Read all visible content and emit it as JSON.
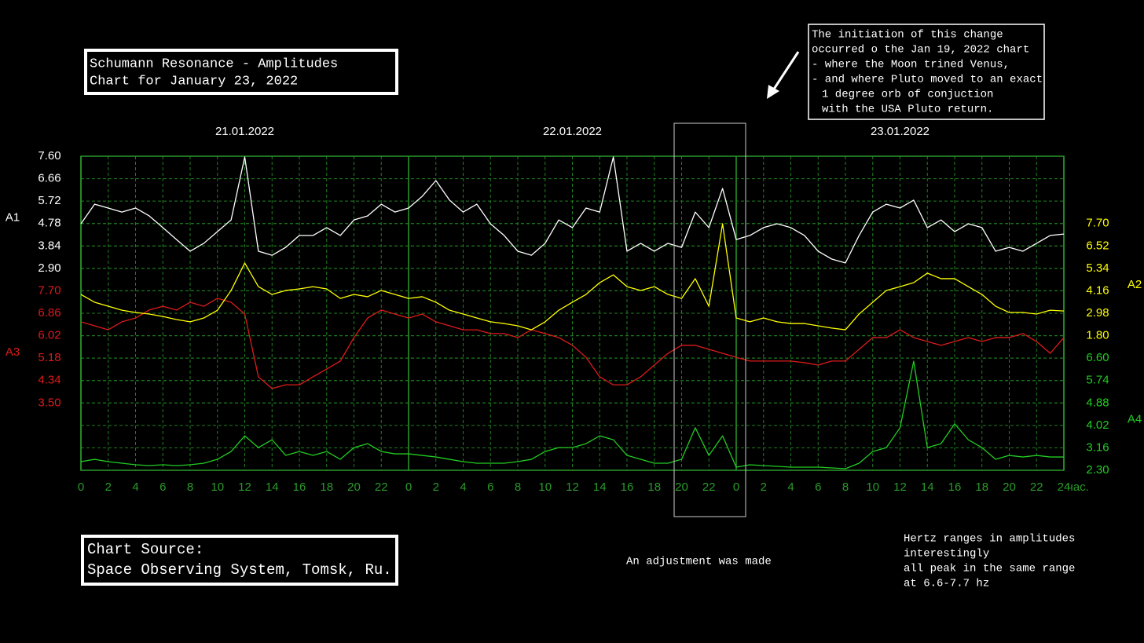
{
  "chart_data": {
    "type": "line",
    "title": [
      "Schumann Resonance - Amplitudes",
      "Chart for January 23, 2022"
    ],
    "day_labels": [
      "21.01.2022",
      "22.01.2022",
      "23.01.2022"
    ],
    "x_unit": "час.",
    "xlim": [
      0,
      72
    ],
    "xticks": [
      0,
      2,
      4,
      6,
      8,
      10,
      12,
      14,
      16,
      18,
      20,
      22,
      {
        "value": 24,
        "label": "0"
      },
      {
        "value": 26,
        "label": "2"
      },
      {
        "value": 28,
        "label": "4"
      },
      {
        "value": 30,
        "label": "6"
      },
      {
        "value": 32,
        "label": "8"
      },
      {
        "value": 34,
        "label": "10"
      },
      {
        "value": 36,
        "label": "12"
      },
      {
        "value": 38,
        "label": "14"
      },
      {
        "value": 40,
        "label": "16"
      },
      {
        "value": 42,
        "label": "18"
      },
      {
        "value": 44,
        "label": "20"
      },
      {
        "value": 46,
        "label": "22"
      },
      {
        "value": 48,
        "label": "0"
      },
      {
        "value": 50,
        "label": "2"
      },
      {
        "value": 52,
        "label": "4"
      },
      {
        "value": 54,
        "label": "6"
      },
      {
        "value": 56,
        "label": "8"
      },
      {
        "value": 58,
        "label": "10"
      },
      {
        "value": 60,
        "label": "12"
      },
      {
        "value": 62,
        "label": "14"
      },
      {
        "value": 64,
        "label": "16"
      },
      {
        "value": 66,
        "label": "18"
      },
      {
        "value": 68,
        "label": "20"
      },
      {
        "value": 70,
        "label": "22"
      },
      {
        "value": 72,
        "label": "24"
      }
    ],
    "x": [
      0,
      1,
      2,
      3,
      4,
      5,
      6,
      7,
      8,
      9,
      10,
      11,
      12,
      13,
      14,
      15,
      16,
      17,
      18,
      19,
      20,
      21,
      22,
      23,
      24,
      25,
      26,
      27,
      28,
      29,
      30,
      31,
      32,
      33,
      34,
      35,
      36,
      37,
      38,
      39,
      40,
      41,
      42,
      43,
      44,
      45,
      46,
      47,
      48,
      49,
      50,
      51,
      52,
      53,
      54,
      55,
      56,
      57,
      58,
      59,
      60,
      61,
      62,
      63,
      64,
      65,
      66,
      67,
      68,
      69,
      70,
      71,
      72
    ],
    "grid": true,
    "series": [
      {
        "name": "A1",
        "color": "#ffffff",
        "side": "left",
        "ylim": [
          -5.56,
          7.6
        ],
        "yticks": [
          {
            "value": 7.6,
            "label": "7.60"
          },
          6.66,
          5.72,
          4.78,
          3.84,
          {
            "value": 2.9,
            "label": "2.90"
          }
        ],
        "values": [
          4.77,
          5.59,
          5.43,
          5.26,
          5.43,
          5.1,
          4.61,
          4.11,
          3.62,
          3.95,
          4.44,
          4.93,
          7.57,
          3.62,
          3.45,
          3.78,
          4.28,
          4.28,
          4.61,
          4.28,
          4.93,
          5.1,
          5.59,
          5.26,
          5.43,
          5.92,
          6.58,
          5.76,
          5.26,
          5.59,
          4.77,
          4.28,
          3.62,
          3.45,
          3.95,
          4.93,
          4.61,
          5.43,
          5.26,
          7.57,
          3.62,
          3.95,
          3.62,
          3.95,
          3.78,
          5.26,
          4.61,
          6.25,
          4.11,
          4.28,
          4.61,
          4.77,
          4.61,
          4.28,
          3.62,
          3.29,
          3.13,
          4.28,
          5.26,
          5.59,
          5.43,
          5.76,
          4.61,
          4.93,
          4.44,
          4.77,
          4.61,
          3.62,
          3.78,
          3.62,
          3.95,
          4.28,
          4.34
        ]
      },
      {
        "name": "A2",
        "color": "#ffff00",
        "side": "right",
        "ylim": [
          -5.28,
          11.24
        ],
        "yticks": [
          {
            "value": 7.7,
            "label": "7.70"
          },
          6.52,
          5.34,
          4.16,
          2.98,
          {
            "value": 1.8,
            "label": "1.80"
          }
        ],
        "values": [
          3.97,
          3.56,
          3.35,
          3.14,
          3.02,
          2.94,
          2.81,
          2.65,
          2.53,
          2.73,
          3.14,
          4.18,
          5.62,
          4.38,
          3.97,
          4.18,
          4.26,
          4.38,
          4.26,
          3.76,
          3.97,
          3.85,
          4.18,
          3.97,
          3.76,
          3.85,
          3.56,
          3.14,
          2.94,
          2.73,
          2.53,
          2.44,
          2.32,
          2.11,
          2.53,
          3.14,
          3.56,
          3.97,
          4.59,
          5.0,
          4.38,
          4.18,
          4.38,
          3.97,
          3.76,
          4.8,
          3.35,
          7.69,
          2.73,
          2.53,
          2.73,
          2.53,
          2.44,
          2.44,
          2.32,
          2.2,
          2.11,
          2.94,
          3.56,
          4.18,
          4.38,
          4.59,
          5.09,
          4.8,
          4.8,
          4.38,
          3.97,
          3.35,
          3.02,
          3.02,
          2.94,
          3.14,
          3.1
        ]
      },
      {
        "name": "A3",
        "color": "#dd1a1a",
        "side": "left",
        "ylim": [
          0.98,
          12.74
        ],
        "yticks": [
          {
            "value": 7.7,
            "label": "7.70"
          },
          6.86,
          6.02,
          5.18,
          4.34,
          {
            "value": 3.5,
            "label": "3.50"
          }
        ],
        "values": [
          6.54,
          6.39,
          6.24,
          6.54,
          6.68,
          6.98,
          7.12,
          6.98,
          7.27,
          7.12,
          7.42,
          7.27,
          6.83,
          4.48,
          4.04,
          4.18,
          4.18,
          4.48,
          4.77,
          5.07,
          5.95,
          6.68,
          6.98,
          6.83,
          6.68,
          6.83,
          6.54,
          6.39,
          6.24,
          6.24,
          6.1,
          6.1,
          5.95,
          6.24,
          6.1,
          5.95,
          5.66,
          5.21,
          4.48,
          4.18,
          4.18,
          4.48,
          4.92,
          5.36,
          5.66,
          5.66,
          5.51,
          5.36,
          5.21,
          5.07,
          5.07,
          5.07,
          5.07,
          5.01,
          4.92,
          5.07,
          5.07,
          5.51,
          5.95,
          5.95,
          6.24,
          5.95,
          5.8,
          5.66,
          5.8,
          5.95,
          5.8,
          5.95,
          5.95,
          6.1,
          5.8,
          5.36,
          5.95
        ]
      },
      {
        "name": "A4",
        "color": "#22cc22",
        "side": "right",
        "ylim": [
          2.3,
          14.34
        ],
        "yticks": [
          {
            "value": 6.6,
            "label": "6.60"
          },
          5.74,
          4.88,
          4.02,
          3.16,
          {
            "value": 2.3,
            "label": "2.30"
          }
        ],
        "values": [
          2.63,
          2.72,
          2.63,
          2.57,
          2.51,
          2.48,
          2.51,
          2.48,
          2.51,
          2.57,
          2.72,
          3.02,
          3.62,
          3.17,
          3.47,
          2.87,
          3.02,
          2.87,
          3.02,
          2.72,
          3.17,
          3.32,
          3.02,
          2.93,
          2.93,
          2.87,
          2.81,
          2.72,
          2.63,
          2.57,
          2.57,
          2.57,
          2.63,
          2.72,
          3.02,
          3.17,
          3.17,
          3.32,
          3.62,
          3.47,
          2.87,
          2.72,
          2.57,
          2.57,
          2.72,
          3.93,
          2.87,
          3.62,
          2.42,
          2.51,
          2.48,
          2.45,
          2.42,
          2.42,
          2.42,
          2.39,
          2.36,
          2.57,
          3.02,
          3.17,
          3.93,
          6.48,
          3.17,
          3.32,
          4.08,
          3.47,
          3.17,
          2.72,
          2.87,
          2.81,
          2.87,
          2.81,
          2.81
        ]
      }
    ],
    "note": [
      "The initiation of this change",
      "occurred o the Jan 19, 2022 chart",
      "- where the Moon trined Venus,",
      "- and where Pluto moved to an exact",
      "1 degree orb of conjuction",
      "with the USA Pluto return."
    ],
    "source": [
      "Chart Source:",
      "Space Observing System, Tomsk, Ru."
    ],
    "adjustment_note": "An adjustment was made",
    "hertz_note": [
      "Hertz ranges in amplitudes",
      "interestingly",
      "all peak in the same range",
      "at 6.6-7.7 hz"
    ]
  }
}
